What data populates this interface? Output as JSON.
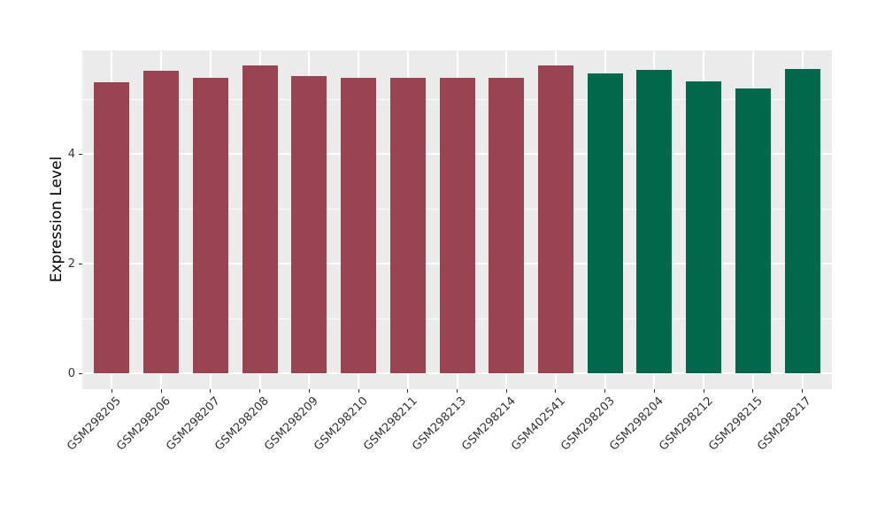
{
  "chart_data": {
    "type": "bar",
    "title": "",
    "xlabel": "",
    "ylabel": "Expression Level",
    "ylim": [
      0,
      5.89
    ],
    "yticks": [
      0,
      2,
      4
    ],
    "ytick_labels": [
      "0",
      "2",
      "4"
    ],
    "yticks_minor": [
      1,
      3,
      5
    ],
    "legend": "none",
    "grid": "white major and minor on gray panel",
    "panel_background": "#EBEBEB",
    "gridline_color": "#FFFFFF",
    "group_colors": {
      "maroon_group": "#9A4451",
      "green_group": "#00684B"
    },
    "categories": [
      "GSM298205",
      "GSM298206",
      "GSM298207",
      "GSM298208",
      "GSM298209",
      "GSM298210",
      "GSM298211",
      "GSM298213",
      "GSM298214",
      "GSM402541",
      "GSM298203",
      "GSM298204",
      "GSM298212",
      "GSM298215",
      "GSM298217"
    ],
    "values": [
      5.3,
      5.51,
      5.38,
      5.62,
      5.42,
      5.39,
      5.39,
      5.39,
      5.38,
      5.61,
      5.47,
      5.54,
      5.32,
      5.19,
      5.55
    ],
    "bar_colors": [
      "#9A4451",
      "#9A4451",
      "#9A4451",
      "#9A4451",
      "#9A4451",
      "#9A4451",
      "#9A4451",
      "#9A4451",
      "#9A4451",
      "#9A4451",
      "#00684B",
      "#00684B",
      "#00684B",
      "#00684B",
      "#00684B"
    ]
  }
}
